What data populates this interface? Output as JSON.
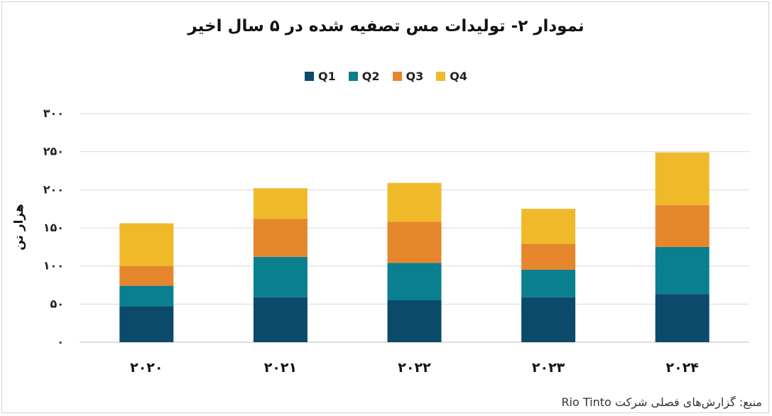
{
  "chart_data": {
    "type": "bar",
    "stacked": true,
    "title": "نمودار ۲- تولیدات مس تصفیه شده در ۵ سال اخیر",
    "ylabel": "هزار تن",
    "xlabel": "",
    "categories": [
      "۲۰۲۰",
      "۲۰۲۱",
      "۲۰۲۲",
      "۲۰۲۳",
      "۲۰۲۴"
    ],
    "ylim": [
      0,
      300
    ],
    "yticks": [
      0,
      50,
      100,
      150,
      200,
      250,
      300
    ],
    "ytick_labels": [
      "۰",
      "۵۰",
      "۱۰۰",
      "۱۵۰",
      "۲۰۰",
      "۲۵۰",
      "۳۰۰"
    ],
    "grid": true,
    "legend_position": "top-center",
    "series": [
      {
        "name": "Q1",
        "color": "#0b4a6b",
        "values": [
          47,
          59,
          55,
          59,
          63
        ]
      },
      {
        "name": "Q2",
        "color": "#0a7f8f",
        "values": [
          27,
          53,
          49,
          36,
          62
        ]
      },
      {
        "name": "Q3",
        "color": "#e5862d",
        "values": [
          26,
          50,
          54,
          34,
          55
        ]
      },
      {
        "name": "Q4",
        "color": "#f0b92a",
        "values": [
          56,
          40,
          51,
          46,
          69
        ]
      }
    ]
  },
  "source": "منبع: گزارش‌های فصلی شرکت Rio Tinto"
}
